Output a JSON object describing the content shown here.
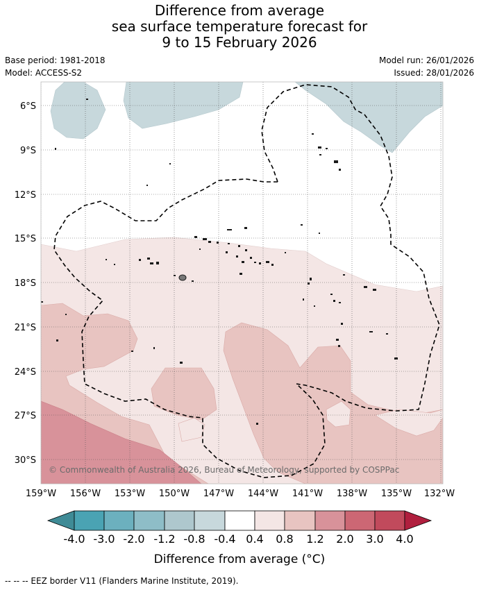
{
  "title": {
    "line1": "Difference from average",
    "line2": "sea surface temperature forecast for",
    "line3": "9 to 15 February 2026"
  },
  "meta": {
    "base_period": "Base period: 1981-2018",
    "model": "Model: ACCESS-S2",
    "model_run": "Model run: 26/01/2026",
    "issued": "Issued: 28/01/2026"
  },
  "map": {
    "lat_labels": [
      "6°S",
      "9°S",
      "12°S",
      "15°S",
      "18°S",
      "21°S",
      "24°S",
      "27°S",
      "30°S"
    ],
    "lon_labels": [
      "159°W",
      "156°W",
      "153°W",
      "150°W",
      "147°W",
      "144°W",
      "141°W",
      "138°W",
      "135°W",
      "132°W"
    ],
    "copyright": "© Commonwealth of Australia 2026, Bureau of Meteorology, supported by COSPPac"
  },
  "colorbar": {
    "ticks": [
      "-4.0",
      "-3.0",
      "-2.0",
      "-1.2",
      "-0.8",
      "-0.4",
      "0.4",
      "0.8",
      "1.2",
      "2.0",
      "3.0",
      "4.0"
    ],
    "colors": [
      "#3f8b96",
      "#4aa3b3",
      "#6cb0be",
      "#8ebdc7",
      "#aec7cd",
      "#c7d8dc",
      "#ffffff",
      "#f4e6e5",
      "#e8c4c1",
      "#d8929a",
      "#cc6774",
      "#c14a5c",
      "#b01f3e"
    ],
    "label": "Difference from average (°C)"
  },
  "footer": {
    "legend": "-- -- -- EEZ border V11 (Flanders Marine Institute, 2019)."
  }
}
